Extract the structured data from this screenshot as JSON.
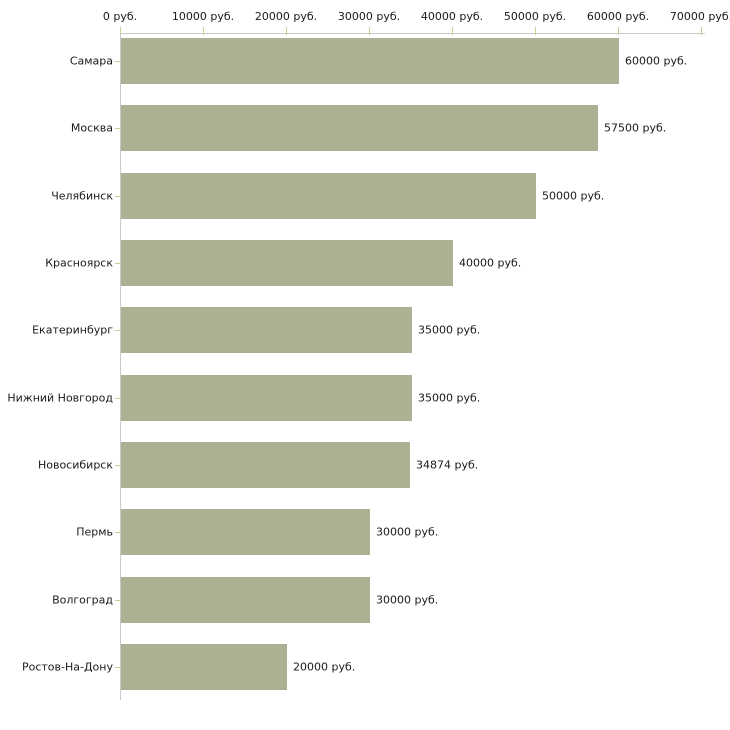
{
  "chart_data": {
    "type": "bar",
    "orientation": "horizontal",
    "title": "",
    "xlabel": "",
    "ylabel": "",
    "unit": "руб.",
    "xlim": [
      0,
      70000
    ],
    "grid": false,
    "legend": false,
    "x_ticks": [
      0,
      10000,
      20000,
      30000,
      40000,
      50000,
      60000,
      70000
    ],
    "x_tick_labels": [
      "0 руб.",
      "10000 руб.",
      "20000 руб.",
      "30000 руб.",
      "40000 руб.",
      "50000 руб.",
      "60000 руб.",
      "70000 руб."
    ],
    "categories": [
      "Самара",
      "Москва",
      "Челябинск",
      "Красноярск",
      "Екатеринбург",
      "Нижний Новгород",
      "Новосибирск",
      "Пермь",
      "Волгоград",
      "Ростов-На-Дону"
    ],
    "values": [
      60000,
      57500,
      50000,
      40000,
      35000,
      35000,
      34874,
      30000,
      30000,
      20000
    ],
    "value_labels": [
      "60000 руб.",
      "57500 руб.",
      "50000 руб.",
      "40000 руб.",
      "35000 руб.",
      "35000 руб.",
      "34874 руб.",
      "30000 руб.",
      "30000 руб.",
      "20000 руб."
    ],
    "colors": {
      "bar": "#abb193",
      "axis_line": "#c9c9c9",
      "tick_mark": "#cccc99",
      "text": "#1a1a1a",
      "background": "#ffffff"
    }
  }
}
